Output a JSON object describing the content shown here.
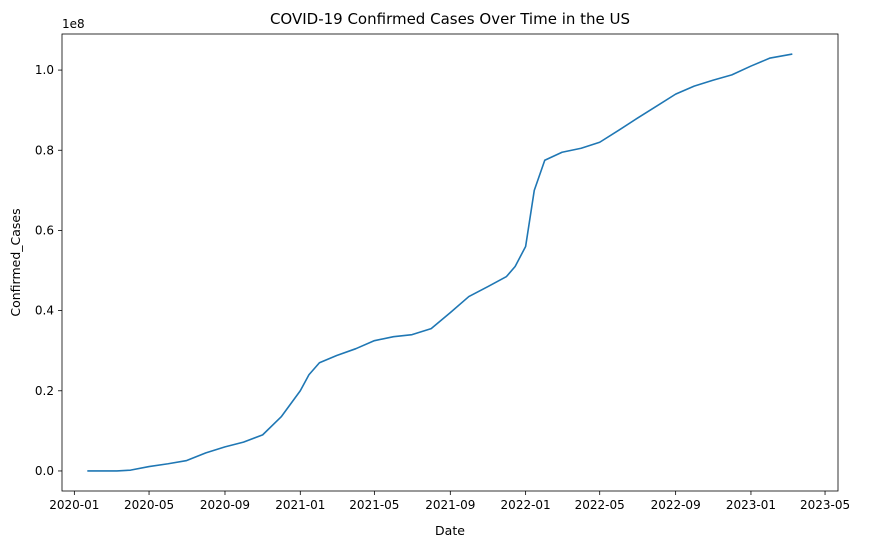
{
  "chart_data": {
    "type": "line",
    "title": "COVID-19 Confirmed Cases Over Time in the US",
    "xlabel": "Date",
    "ylabel": "Confirmed_Cases",
    "y_offset_label": "1e8",
    "x_ticks": [
      "2020-01",
      "2020-05",
      "2020-09",
      "2021-01",
      "2021-05",
      "2021-09",
      "2022-01",
      "2022-05",
      "2022-09",
      "2023-01",
      "2023-05"
    ],
    "y_ticks": [
      "0.0",
      "0.2",
      "0.4",
      "0.6",
      "0.8",
      "1.0"
    ],
    "xlim": [
      "2019-12-12",
      "2023-05-22"
    ],
    "ylim": [
      -0.05,
      1.09
    ],
    "line_color": "#1f77b4",
    "grid": false,
    "series": [
      {
        "x": [
          "2020-01-22",
          "2020-03-10",
          "2020-04-01",
          "2020-05-01",
          "2020-06-01",
          "2020-07-01",
          "2020-08-01",
          "2020-09-01",
          "2020-10-01",
          "2020-11-01",
          "2020-12-01",
          "2021-01-01",
          "2021-01-15",
          "2021-02-01",
          "2021-03-01",
          "2021-04-01",
          "2021-05-01",
          "2021-06-01",
          "2021-07-01",
          "2021-08-01",
          "2021-09-01",
          "2021-10-01",
          "2021-11-01",
          "2021-12-01",
          "2021-12-15",
          "2022-01-01",
          "2022-01-15",
          "2022-02-01",
          "2022-03-01",
          "2022-04-01",
          "2022-05-01",
          "2022-06-01",
          "2022-07-01",
          "2022-08-01",
          "2022-09-01",
          "2022-10-01",
          "2022-11-01",
          "2022-12-01",
          "2023-01-01",
          "2023-02-01",
          "2023-03-09"
        ],
        "y": [
          0.0,
          0.0,
          0.002,
          0.011,
          0.018,
          0.026,
          0.045,
          0.06,
          0.072,
          0.09,
          0.135,
          0.2,
          0.24,
          0.27,
          0.288,
          0.305,
          0.325,
          0.335,
          0.34,
          0.355,
          0.395,
          0.435,
          0.46,
          0.485,
          0.51,
          0.56,
          0.7,
          0.775,
          0.795,
          0.805,
          0.82,
          0.85,
          0.88,
          0.91,
          0.94,
          0.96,
          0.975,
          0.988,
          1.01,
          1.03,
          1.04
        ]
      }
    ]
  }
}
